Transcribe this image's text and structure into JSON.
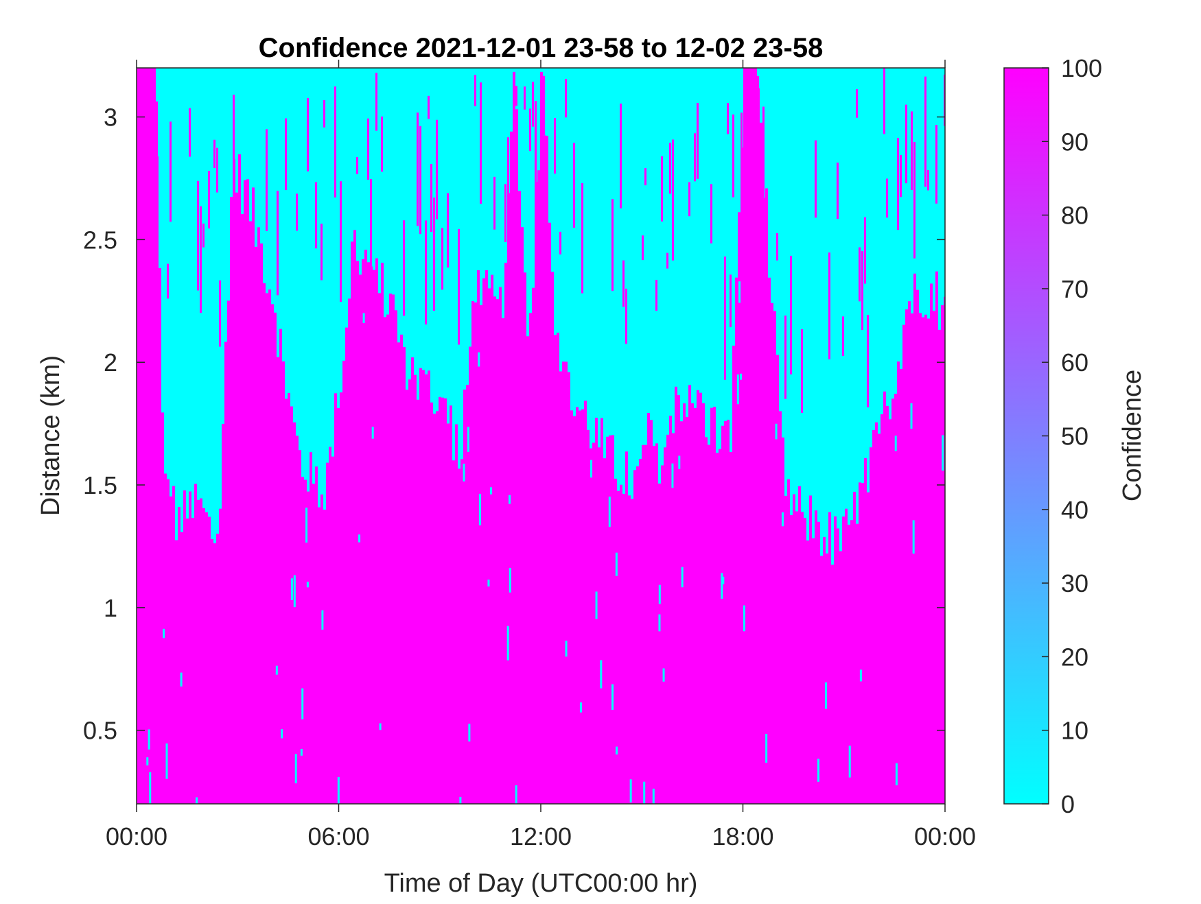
{
  "chart_data": {
    "type": "heatmap",
    "title": "Confidence 2021-12-01 23-58 to 12-02 23-58",
    "xlabel": "Time of Day (UTC00:00 hr)",
    "ylabel": "Distance (km)",
    "xlim_hours": [
      0,
      24
    ],
    "ylim": [
      0.2,
      3.2
    ],
    "x_ticks": [
      {
        "value": 0,
        "label": "00:00"
      },
      {
        "value": 6,
        "label": "06:00"
      },
      {
        "value": 12,
        "label": "12:00"
      },
      {
        "value": 18,
        "label": "18:00"
      },
      {
        "value": 24,
        "label": "00:00"
      }
    ],
    "y_ticks": [
      {
        "value": 0.5,
        "label": "0.5"
      },
      {
        "value": 1,
        "label": "1"
      },
      {
        "value": 1.5,
        "label": "1.5"
      },
      {
        "value": 2,
        "label": "2"
      },
      {
        "value": 2.5,
        "label": "2.5"
      },
      {
        "value": 3,
        "label": "3"
      }
    ],
    "colorbar": {
      "label": "Confidence",
      "range": [
        0,
        100
      ],
      "ticks": [
        0,
        10,
        20,
        30,
        40,
        50,
        60,
        70,
        80,
        90,
        100
      ],
      "color_low": "#00ffff",
      "color_high": "#ff00ff"
    },
    "background_value": 100,
    "background_color": "#ff00ff",
    "low_confidence_value": 0,
    "low_confidence_color": "#00ffff",
    "low_confidence_profile": {
      "description_hours": [
        0.0,
        0.5,
        0.8,
        1.2,
        1.6,
        2.0,
        2.4,
        2.8,
        3.2,
        3.6,
        4.0,
        4.4,
        4.8,
        5.2,
        5.6,
        6.0,
        6.4,
        6.8,
        7.2,
        7.6,
        8.0,
        8.4,
        8.8,
        9.2,
        9.6,
        10.0,
        10.4,
        10.8,
        11.2,
        11.6,
        12.0,
        12.4,
        12.8,
        13.2,
        13.6,
        14.0,
        14.4,
        14.8,
        15.2,
        15.6,
        16.0,
        16.4,
        16.8,
        17.2,
        17.6,
        18.0,
        18.4,
        18.8,
        19.2,
        19.6,
        20.0,
        20.4,
        20.8,
        21.2,
        21.6,
        22.0,
        22.4,
        22.8,
        23.2,
        23.6,
        24.0
      ],
      "lower_km": [
        3.2,
        3.2,
        1.5,
        1.35,
        1.4,
        1.35,
        1.25,
        2.8,
        2.7,
        2.5,
        2.3,
        1.9,
        1.6,
        1.5,
        1.5,
        1.9,
        2.5,
        2.4,
        2.3,
        2.2,
        2.0,
        1.9,
        1.9,
        1.8,
        1.6,
        2.3,
        2.25,
        2.2,
        3.2,
        2.0,
        3.2,
        2.2,
        1.85,
        1.8,
        1.7,
        1.6,
        1.55,
        1.5,
        1.7,
        1.6,
        1.9,
        1.8,
        1.8,
        1.7,
        1.7,
        3.2,
        3.2,
        2.3,
        1.5,
        1.4,
        1.35,
        1.3,
        1.25,
        1.35,
        1.5,
        1.7,
        1.9,
        2.2,
        2.3,
        2.3,
        2.2
      ]
    }
  }
}
